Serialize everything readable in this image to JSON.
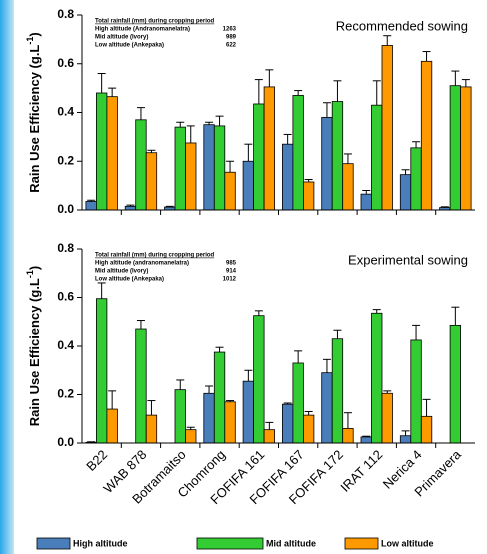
{
  "chart_data": [
    {
      "type": "bar",
      "panel_label": "Recommended sowing",
      "ylabel": [
        "Rain Use Efficiency (g.L",
        "-1",
        ")"
      ],
      "ylim": [
        0,
        0.8
      ],
      "yticks": [
        {
          "value": 0,
          "label": "0.0"
        },
        {
          "value": 0.2,
          "label": "0.2"
        },
        {
          "value": 0.4,
          "label": "0.4"
        },
        {
          "value": 0.6,
          "label": "0.6"
        },
        {
          "value": 0.8,
          "label": "0.8"
        }
      ],
      "inset": {
        "title": "Total rainfall (mm) during cropping period",
        "rows": [
          [
            "High altitude (Andranomanelatra)",
            "1263"
          ],
          [
            "Mid altitude (Ivory)",
            "989"
          ],
          [
            "Low altitude (Ankepaka)",
            "622"
          ]
        ]
      },
      "series": [
        {
          "name": "High altitude",
          "color": "#4a7ebb",
          "values": [
            0.035,
            0.015,
            0.012,
            0.35,
            0.2,
            0.27,
            0.38,
            0.065,
            0.145,
            0.01
          ],
          "errors": [
            0.005,
            0.005,
            0.003,
            0.01,
            0.07,
            0.04,
            0.06,
            0.015,
            0.02,
            0.003
          ]
        },
        {
          "name": "Mid altitude",
          "color": "#33cc33",
          "values": [
            0.48,
            0.37,
            0.34,
            0.345,
            0.435,
            0.47,
            0.445,
            0.43,
            0.255,
            0.51
          ],
          "errors": [
            0.08,
            0.05,
            0.02,
            0.04,
            0.1,
            0.02,
            0.085,
            0.1,
            0.025,
            0.06
          ]
        },
        {
          "name": "Low altitude",
          "color": "#ff9900",
          "values": [
            0.465,
            0.235,
            0.275,
            0.155,
            0.505,
            0.115,
            0.19,
            0.675,
            0.61,
            0.505
          ],
          "errors": [
            0.035,
            0.01,
            0.07,
            0.045,
            0.07,
            0.01,
            0.04,
            0.04,
            0.04,
            0.03
          ]
        }
      ]
    },
    {
      "type": "bar",
      "panel_label": "Experimental sowing",
      "ylabel": [
        "Rain Use Efficiency (g.L",
        "-1",
        ")"
      ],
      "ylim": [
        0,
        0.8
      ],
      "yticks": [
        {
          "value": 0,
          "label": "0.0"
        },
        {
          "value": 0.2,
          "label": "0.2"
        },
        {
          "value": 0.4,
          "label": "0.4"
        },
        {
          "value": 0.6,
          "label": "0.6"
        },
        {
          "value": 0.8,
          "label": "0.8"
        }
      ],
      "categories": [
        "B22",
        "WAB 878",
        "Botramaitso",
        "Chomrong",
        "FOFIFA 161",
        "FOFIFA 167",
        "FOFIFA 172",
        "IRAT 112",
        "Nerica 4",
        "Primavera"
      ],
      "inset": {
        "title": "Total rainfall (mm) during cropping period",
        "rows": [
          [
            "High altitude (andranomanelatra)",
            "985"
          ],
          [
            "Mid altitude (Ivory)",
            "914"
          ],
          [
            "Low altitude (Ankepaka)",
            "1012"
          ]
        ]
      },
      "series": [
        {
          "color": "#4a7ebb",
          "values": [
            0.003,
            0,
            0,
            0.205,
            0.255,
            0.16,
            0.29,
            0.025,
            0.03,
            0
          ],
          "errors": [
            0.002,
            0,
            0,
            0.03,
            0.045,
            0.005,
            0.055,
            0.003,
            0.02,
            0
          ]
        },
        {
          "color": "#33cc33",
          "values": [
            0.595,
            0.47,
            0.22,
            0.375,
            0.525,
            0.33,
            0.43,
            0.535,
            0.425,
            0.485
          ],
          "errors": [
            0.065,
            0.035,
            0.04,
            0.02,
            0.02,
            0.05,
            0.035,
            0.015,
            0.06,
            0.075
          ]
        },
        {
          "color": "#ff9900",
          "values": [
            0.14,
            0.115,
            0.055,
            0.17,
            0.055,
            0.115,
            0.06,
            0.205,
            0.11,
            null
          ],
          "errors": [
            0.075,
            0.06,
            0.01,
            0.005,
            0.03,
            0.015,
            0.065,
            0.01,
            0.07,
            null
          ]
        }
      ]
    }
  ]
}
